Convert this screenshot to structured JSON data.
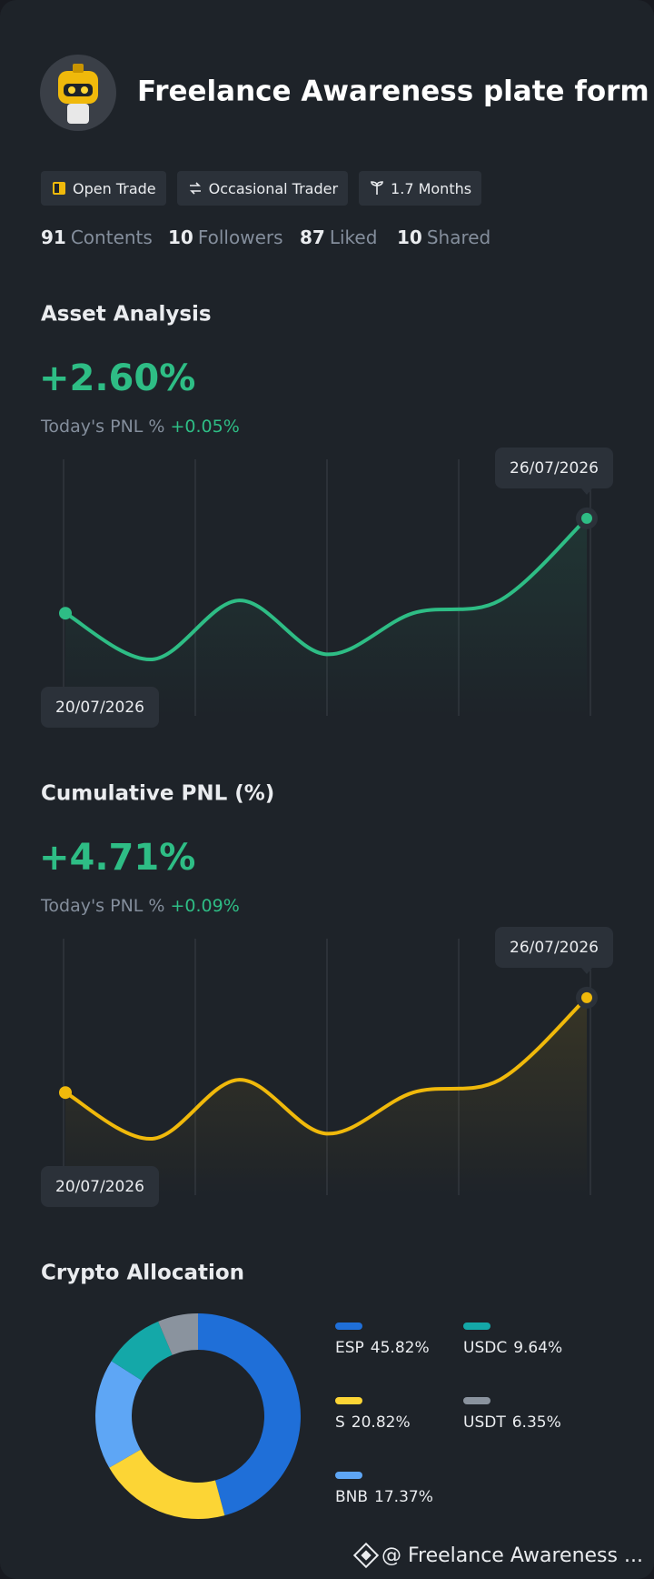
{
  "header": {
    "title": "Freelance Awareness plate form",
    "tags": [
      "Open Trade",
      "Occasional Trader",
      "1.7 Months"
    ],
    "stats": [
      {
        "value": 91,
        "label": "Contents"
      },
      {
        "value": 10,
        "label": "Followers"
      },
      {
        "value": 87,
        "label": "Liked"
      },
      {
        "value": 10,
        "label": "Shared"
      }
    ]
  },
  "chart_data": [
    {
      "type": "line",
      "title": "Asset Analysis",
      "headline": "+2.60%",
      "pnl_label": "Today's PNL %",
      "pnl_value": "+0.05%",
      "categories": [
        "20/07/2026",
        null,
        null,
        null,
        null,
        null,
        "26/07/2026"
      ],
      "values": [
        40,
        22,
        45,
        24,
        40,
        45,
        77
      ],
      "color": "#2ebd85",
      "ylim": [
        0,
        100
      ]
    },
    {
      "type": "line",
      "title": "Cumulative PNL (%)",
      "headline": "+4.71%",
      "pnl_label": "Today's PNL %",
      "pnl_value": "+0.09%",
      "categories": [
        "20/07/2026",
        null,
        null,
        null,
        null,
        null,
        "26/07/2026"
      ],
      "values": [
        40,
        22,
        45,
        24,
        40,
        45,
        77
      ],
      "color": "#f0b90b",
      "ylim": [
        0,
        100
      ]
    },
    {
      "type": "pie",
      "title": "Crypto Allocation",
      "donut": true,
      "categories": [
        "ESP",
        "S",
        "BNB",
        "USDC",
        "USDT"
      ],
      "values": [
        45.82,
        20.82,
        17.37,
        9.64,
        6.35
      ],
      "value_labels": [
        "45.82%",
        "20.82%",
        "17.37%",
        "9.64%",
        "6.35%"
      ],
      "colors": [
        "#1f6fd8",
        "#fcd535",
        "#5ea6f5",
        "#14a8a8",
        "#8a939e"
      ]
    }
  ],
  "footer": {
    "text": "@ Freelance Awareness ..."
  }
}
